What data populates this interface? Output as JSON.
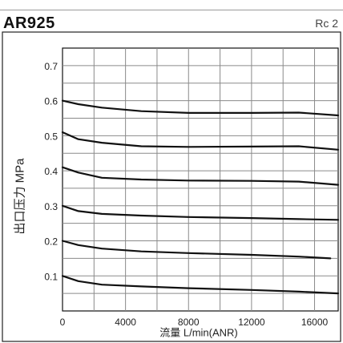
{
  "chart_data": {
    "type": "line",
    "title": "AR925",
    "port": "Rc 2",
    "xlabel": "流量 L/min(ANR)",
    "ylabel": "出口压力 MPa",
    "xlim": [
      0,
      17500
    ],
    "ylim": [
      0,
      0.75
    ],
    "x_ticks": [
      "0",
      "4000",
      "8000",
      "12000",
      "16000"
    ],
    "y_ticks": [
      "0.1",
      "0.2",
      "0.3",
      "0.4",
      "0.5",
      "0.6",
      "0.7"
    ],
    "grid": true,
    "series": [
      {
        "x": [
          0,
          1000,
          2500,
          5000,
          8000,
          12000,
          15000,
          17500
        ],
        "values": [
          0.1,
          0.085,
          0.075,
          0.07,
          0.065,
          0.06,
          0.055,
          0.05
        ]
      },
      {
        "x": [
          0,
          1000,
          2500,
          5000,
          8000,
          12000,
          15000,
          17000
        ],
        "values": [
          0.2,
          0.188,
          0.178,
          0.17,
          0.165,
          0.16,
          0.155,
          0.15
        ]
      },
      {
        "x": [
          0,
          1000,
          2500,
          5000,
          8000,
          12000,
          15000,
          17500
        ],
        "values": [
          0.3,
          0.285,
          0.277,
          0.272,
          0.268,
          0.265,
          0.262,
          0.26
        ]
      },
      {
        "x": [
          0,
          1000,
          2500,
          5000,
          8000,
          12000,
          15000,
          17500
        ],
        "values": [
          0.41,
          0.395,
          0.38,
          0.375,
          0.372,
          0.371,
          0.369,
          0.36
        ]
      },
      {
        "x": [
          0,
          1000,
          2500,
          5000,
          8000,
          12000,
          15000,
          17500
        ],
        "values": [
          0.51,
          0.49,
          0.48,
          0.47,
          0.468,
          0.469,
          0.47,
          0.46
        ]
      },
      {
        "x": [
          0,
          1000,
          2500,
          5000,
          8000,
          12000,
          15000,
          17500
        ],
        "values": [
          0.6,
          0.59,
          0.58,
          0.57,
          0.565,
          0.565,
          0.566,
          0.558
        ]
      }
    ]
  }
}
